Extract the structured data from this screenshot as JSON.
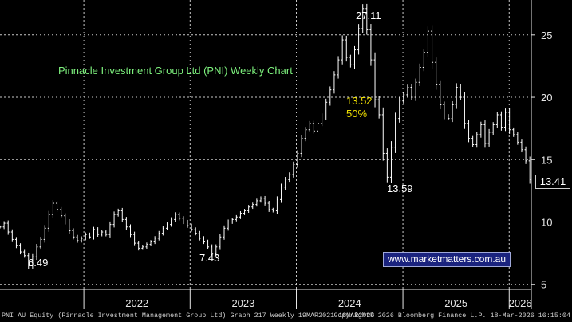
{
  "chart_data": {
    "type": "line",
    "style": "weekly-bars",
    "title": "Pinnacle Investment Group Ltd (PNI) Weekly Chart",
    "y_ticks": [
      5,
      10,
      15,
      20,
      25
    ],
    "ylim": [
      4.6,
      27.8
    ],
    "x_ticks": [
      "2022",
      "2023",
      "2024",
      "2025",
      "2026"
    ],
    "xlim": [
      "2021-03-19",
      "2026-03-18"
    ],
    "grid": true,
    "series": [
      {
        "points": [
          [
            "2021-03-19",
            9.6
          ],
          [
            "2021-04-02",
            9.9
          ],
          [
            "2021-04-16",
            9.2
          ],
          [
            "2021-04-30",
            8.6
          ],
          [
            "2021-05-14",
            8.1
          ],
          [
            "2021-05-28",
            7.6
          ],
          [
            "2021-06-11",
            7.3
          ],
          [
            "2021-06-25",
            6.49
          ],
          [
            "2021-07-09",
            7.2
          ],
          [
            "2021-07-23",
            8.0
          ],
          [
            "2021-08-06",
            8.6
          ],
          [
            "2021-08-20",
            9.5
          ],
          [
            "2021-09-03",
            10.6
          ],
          [
            "2021-09-17",
            11.5
          ],
          [
            "2021-10-01",
            11.0
          ],
          [
            "2021-10-15",
            10.5
          ],
          [
            "2021-10-29",
            10.0
          ],
          [
            "2021-11-12",
            9.3
          ],
          [
            "2021-11-26",
            8.8
          ],
          [
            "2021-12-10",
            8.5
          ],
          [
            "2021-12-24",
            8.7
          ],
          [
            "2022-01-07",
            9.0
          ],
          [
            "2022-01-21",
            8.8
          ],
          [
            "2022-02-04",
            9.4
          ],
          [
            "2022-02-18",
            9.0
          ],
          [
            "2022-03-04",
            9.2
          ],
          [
            "2022-03-18",
            9.0
          ],
          [
            "2022-04-01",
            9.8
          ],
          [
            "2022-04-15",
            10.6
          ],
          [
            "2022-04-29",
            10.9
          ],
          [
            "2022-05-13",
            10.2
          ],
          [
            "2022-05-27",
            9.6
          ],
          [
            "2022-06-10",
            9.0
          ],
          [
            "2022-06-24",
            8.3
          ],
          [
            "2022-07-08",
            7.9
          ],
          [
            "2022-07-22",
            8.0
          ],
          [
            "2022-08-05",
            8.2
          ],
          [
            "2022-08-19",
            8.4
          ],
          [
            "2022-09-02",
            8.7
          ],
          [
            "2022-09-16",
            9.1
          ],
          [
            "2022-09-30",
            9.5
          ],
          [
            "2022-10-14",
            9.8
          ],
          [
            "2022-10-28",
            10.2
          ],
          [
            "2022-11-11",
            10.6
          ],
          [
            "2022-11-25",
            10.3
          ],
          [
            "2022-12-09",
            10.0
          ],
          [
            "2022-12-23",
            9.7
          ],
          [
            "2023-01-06",
            9.4
          ],
          [
            "2023-01-20",
            9.1
          ],
          [
            "2023-02-03",
            8.7
          ],
          [
            "2023-02-17",
            8.4
          ],
          [
            "2023-03-03",
            8.0
          ],
          [
            "2023-03-17",
            7.43
          ],
          [
            "2023-03-31",
            8.0
          ],
          [
            "2023-04-14",
            8.8
          ],
          [
            "2023-04-28",
            9.5
          ],
          [
            "2023-05-12",
            10.0
          ],
          [
            "2023-05-26",
            10.2
          ],
          [
            "2023-06-09",
            10.4
          ],
          [
            "2023-06-23",
            10.7
          ],
          [
            "2023-07-07",
            10.9
          ],
          [
            "2023-07-21",
            11.2
          ],
          [
            "2023-08-04",
            11.4
          ],
          [
            "2023-08-18",
            11.7
          ],
          [
            "2023-09-01",
            11.9
          ],
          [
            "2023-09-15",
            11.5
          ],
          [
            "2023-09-29",
            11.0
          ],
          [
            "2023-10-13",
            10.9
          ],
          [
            "2023-10-27",
            11.8
          ],
          [
            "2023-11-10",
            12.8
          ],
          [
            "2023-11-24",
            13.4
          ],
          [
            "2023-12-08",
            13.8
          ],
          [
            "2023-12-22",
            14.6
          ],
          [
            "2024-01-05",
            15.5
          ],
          [
            "2024-01-19",
            16.7
          ],
          [
            "2024-02-02",
            17.4
          ],
          [
            "2024-02-16",
            17.9
          ],
          [
            "2024-03-01",
            17.3
          ],
          [
            "2024-03-15",
            17.9
          ],
          [
            "2024-03-29",
            18.5
          ],
          [
            "2024-04-12",
            19.6
          ],
          [
            "2024-04-26",
            20.6
          ],
          [
            "2024-05-10",
            21.8
          ],
          [
            "2024-05-24",
            23.0
          ],
          [
            "2024-06-07",
            24.6
          ],
          [
            "2024-06-21",
            23.2
          ],
          [
            "2024-07-05",
            22.6
          ],
          [
            "2024-07-19",
            23.8
          ],
          [
            "2024-08-02",
            25.5
          ],
          [
            "2024-08-16",
            27.11
          ],
          [
            "2024-08-30",
            25.4
          ],
          [
            "2024-09-13",
            23.0
          ],
          [
            "2024-09-27",
            19.8
          ],
          [
            "2024-10-11",
            18.6
          ],
          [
            "2024-10-25",
            15.5
          ],
          [
            "2024-11-08",
            13.59
          ],
          [
            "2024-11-22",
            16.0
          ],
          [
            "2024-12-06",
            18.3
          ],
          [
            "2024-12-20",
            19.7
          ],
          [
            "2025-01-03",
            20.2
          ],
          [
            "2025-01-17",
            20.8
          ],
          [
            "2025-01-31",
            20.0
          ],
          [
            "2025-02-14",
            21.2
          ],
          [
            "2025-02-28",
            22.4
          ],
          [
            "2025-03-14",
            23.6
          ],
          [
            "2025-03-28",
            25.3
          ],
          [
            "2025-04-11",
            22.8
          ],
          [
            "2025-04-25",
            21.0
          ],
          [
            "2025-05-09",
            19.4
          ],
          [
            "2025-05-23",
            18.5
          ],
          [
            "2025-06-06",
            18.3
          ],
          [
            "2025-06-20",
            19.4
          ],
          [
            "2025-07-04",
            20.8
          ],
          [
            "2025-07-18",
            20.0
          ],
          [
            "2025-08-01",
            17.9
          ],
          [
            "2025-08-15",
            16.7
          ],
          [
            "2025-08-29",
            16.2
          ],
          [
            "2025-09-12",
            17.0
          ],
          [
            "2025-09-26",
            17.8
          ],
          [
            "2025-10-10",
            16.3
          ],
          [
            "2025-10-24",
            17.2
          ],
          [
            "2025-11-07",
            17.8
          ],
          [
            "2025-11-21",
            18.6
          ],
          [
            "2025-12-05",
            17.6
          ],
          [
            "2025-12-19",
            18.8
          ],
          [
            "2026-01-02",
            17.4
          ],
          [
            "2026-01-16",
            17.0
          ],
          [
            "2026-01-30",
            16.4
          ],
          [
            "2026-02-13",
            15.8
          ],
          [
            "2026-02-27",
            14.9
          ],
          [
            "2026-03-13",
            13.41
          ]
        ]
      }
    ],
    "retracement": {
      "level": 13.52,
      "label": "50%",
      "value_text": "13.52"
    },
    "annotations": [
      "27.11",
      "13.59",
      "6.49",
      "7.43"
    ],
    "last_price": "13.41",
    "colors": {
      "background": "#000000",
      "price": "#ffffff",
      "grid": "#c8c8c8",
      "title": "#7df07d",
      "retracement": "#f0e000",
      "website_bg": "#1a237e"
    }
  },
  "website": "www.marketmatters.com.au",
  "footer": {
    "left": "PNI AU Equity (Pinnacle Investment Management Group Ltd) Graph 217 Weekly 19MAR2021-18MAR2026",
    "right": "Copyright© 2026 Bloomberg Finance L.P.    18-Mar-2026 16:15:04"
  }
}
